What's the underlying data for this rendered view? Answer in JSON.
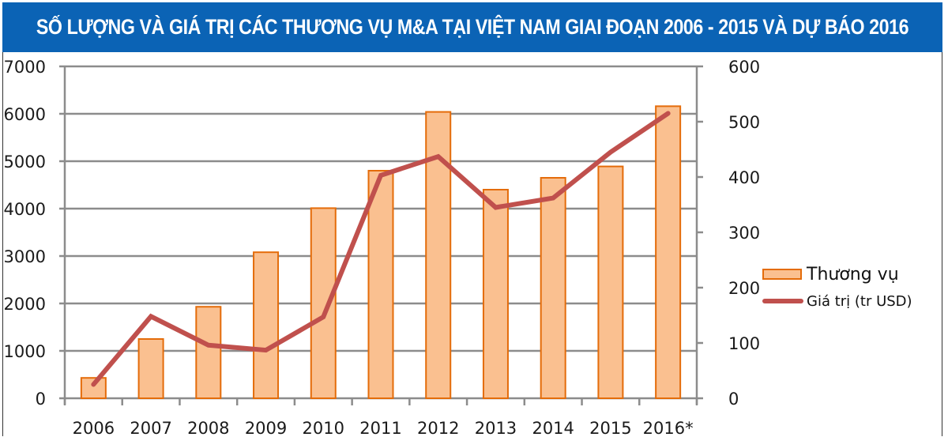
{
  "header": {
    "title": "SỐ LƯỢNG VÀ GIÁ TRỊ CÁC THƯƠNG VỤ M&A TẠI VIỆT NAM GIAI ĐOẠN 2006 - 2015 VÀ DỰ BÁO 2016"
  },
  "colors": {
    "title_bg": "#0b63b5",
    "bar_fill": "#fac090",
    "bar_stroke": "#e46c0a",
    "line": "#c0504d",
    "grid": "#8c8c8c"
  },
  "legend": {
    "items": [
      {
        "label": "Thương vụ",
        "type": "bar"
      },
      {
        "label": "Giá trị (tr USD)",
        "type": "line"
      }
    ]
  },
  "chart_data": {
    "type": "bar",
    "title": "SỐ LƯỢNG VÀ GIÁ TRỊ CÁC THƯƠNG VỤ M&A TẠI VIỆT NAM GIAI ĐOẠN 2006 - 2015 VÀ DỰ BÁO 2016",
    "categories": [
      "2006",
      "2007",
      "2008",
      "2009",
      "2010",
      "2011",
      "2012",
      "2013",
      "2014",
      "2015",
      "2016*"
    ],
    "series": [
      {
        "name": "Thương vụ",
        "type": "bar",
        "axis": "left",
        "values": [
          430,
          1250,
          1930,
          3080,
          4010,
          4800,
          6040,
          4400,
          4650,
          4890,
          6160
        ]
      },
      {
        "name": "Giá trị (tr USD)",
        "type": "line",
        "axis": "right",
        "values": [
          25,
          148,
          96,
          87,
          147,
          403,
          437,
          345,
          362,
          445,
          515
        ]
      }
    ],
    "left_axis": {
      "ylim": [
        0,
        7000
      ],
      "ticks": [
        0,
        1000,
        2000,
        3000,
        4000,
        5000,
        6000,
        7000
      ]
    },
    "right_axis": {
      "ylim": [
        0,
        600
      ],
      "ticks": [
        0,
        100,
        200,
        300,
        400,
        500,
        600
      ]
    },
    "xlabel": "",
    "ylabel": "",
    "grid": true,
    "legend_position": "right"
  }
}
